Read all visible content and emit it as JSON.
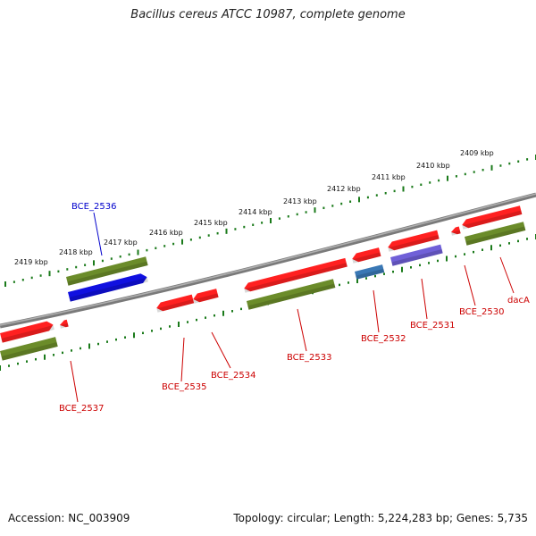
{
  "title": "Bacillus cereus ATCC 10987, complete genome",
  "footer": {
    "accession": "Accession: NC_003909",
    "summary": "Topology: circular; Length: 5,224,283 bp; Genes: 5,735"
  },
  "colors": {
    "backbone": "#808080",
    "ruler": "#1a7a1a",
    "forward_gene": "#ff2020",
    "cds": "#6b8c2a",
    "highlight_gene": "#1010e0",
    "rna_blue": "#3a78b5",
    "rna_purple": "#7060d8",
    "label_red": "#cc0000",
    "label_blue": "#0000cc"
  },
  "ruler": {
    "ticks": [
      "2419 kbp",
      "2418 kbp",
      "2417 kbp",
      "2416 kbp",
      "2415 kbp",
      "2414 kbp",
      "2413 kbp",
      "2412 kbp",
      "2411 kbp",
      "2410 kbp",
      "2409 kbp"
    ]
  },
  "genes": [
    {
      "name": "BCE_2537",
      "color": "label_red"
    },
    {
      "name": "BCE_2536",
      "color": "label_blue"
    },
    {
      "name": "BCE_2535",
      "color": "label_red"
    },
    {
      "name": "BCE_2534",
      "color": "label_red"
    },
    {
      "name": "BCE_2533",
      "color": "label_red"
    },
    {
      "name": "BCE_2532",
      "color": "label_red"
    },
    {
      "name": "BCE_2531",
      "color": "label_red"
    },
    {
      "name": "BCE_2530",
      "color": "label_red"
    },
    {
      "name": "dacA",
      "color": "label_red"
    }
  ]
}
